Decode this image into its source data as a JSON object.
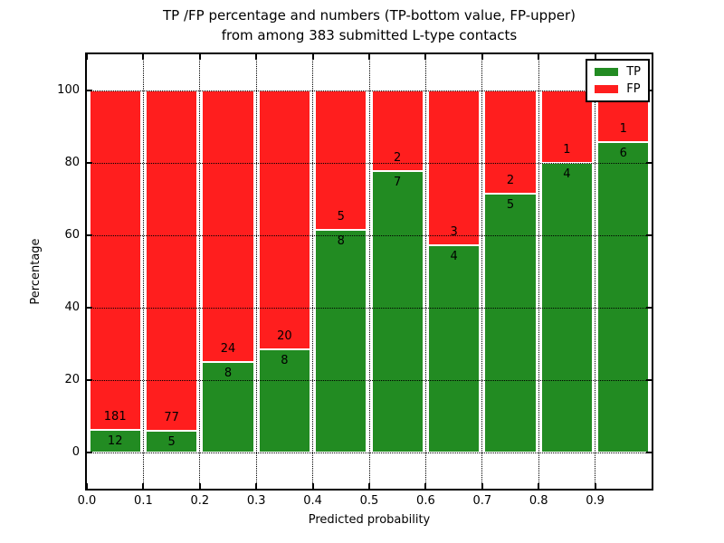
{
  "chart_data": {
    "type": "bar",
    "stacked": true,
    "normalized_to_percent": true,
    "title": "TP /FP percentage and numbers (TP-bottom value, FP-upper)\nfrom among 383 submitted L-type contacts",
    "xlabel": "Predicted probability",
    "ylabel": "Percentage",
    "xlim": [
      0.0,
      1.0
    ],
    "ylim": [
      -10,
      110
    ],
    "xticks": [
      0.0,
      0.1,
      0.2,
      0.3,
      0.4,
      0.5,
      0.6,
      0.7,
      0.8,
      0.9
    ],
    "yticks": [
      0,
      20,
      40,
      60,
      80,
      100
    ],
    "grid": true,
    "grid_style": "dotted",
    "legend_position": "upper right",
    "series": [
      {
        "name": "TP",
        "color": "#228b22"
      },
      {
        "name": "FP",
        "color": "#ff1e1e"
      }
    ],
    "total_contacts": 383,
    "bins": [
      {
        "range": [
          0.0,
          0.1
        ],
        "tp": 12,
        "fp": 181
      },
      {
        "range": [
          0.1,
          0.2
        ],
        "tp": 5,
        "fp": 77
      },
      {
        "range": [
          0.2,
          0.3
        ],
        "tp": 8,
        "fp": 24
      },
      {
        "range": [
          0.3,
          0.4
        ],
        "tp": 8,
        "fp": 20
      },
      {
        "range": [
          0.4,
          0.5
        ],
        "tp": 8,
        "fp": 5
      },
      {
        "range": [
          0.5,
          0.6
        ],
        "tp": 7,
        "fp": 2
      },
      {
        "range": [
          0.6,
          0.7
        ],
        "tp": 4,
        "fp": 3
      },
      {
        "range": [
          0.7,
          0.8
        ],
        "tp": 5,
        "fp": 2
      },
      {
        "range": [
          0.8,
          0.9
        ],
        "tp": 4,
        "fp": 1
      },
      {
        "range": [
          0.9,
          1.0
        ],
        "tp": 6,
        "fp": 1
      }
    ]
  }
}
